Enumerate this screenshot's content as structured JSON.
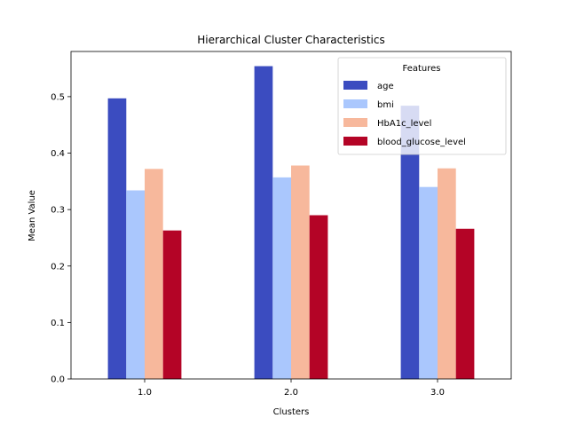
{
  "chart_data": {
    "type": "bar",
    "title": "Hierarchical Cluster Characteristics",
    "xlabel": "Clusters",
    "ylabel": "Mean Value",
    "categories": [
      "1.0",
      "2.0",
      "3.0"
    ],
    "ylim": [
      0,
      0.58
    ],
    "yticks": [
      "0.0",
      "0.1",
      "0.2",
      "0.3",
      "0.4",
      "0.5"
    ],
    "legend": {
      "title": "Features",
      "placement": "top-right"
    },
    "grid": false,
    "series": [
      {
        "name": "age",
        "color": "#3b4cc0",
        "values": [
          0.497,
          0.554,
          0.484
        ]
      },
      {
        "name": "bmi",
        "color": "#aac7fd",
        "values": [
          0.334,
          0.357,
          0.34
        ]
      },
      {
        "name": "HbA1c_level",
        "color": "#f7b89c",
        "values": [
          0.372,
          0.378,
          0.373
        ]
      },
      {
        "name": "blood_glucose_level",
        "color": "#b40426",
        "values": [
          0.263,
          0.29,
          0.266
        ]
      }
    ]
  }
}
